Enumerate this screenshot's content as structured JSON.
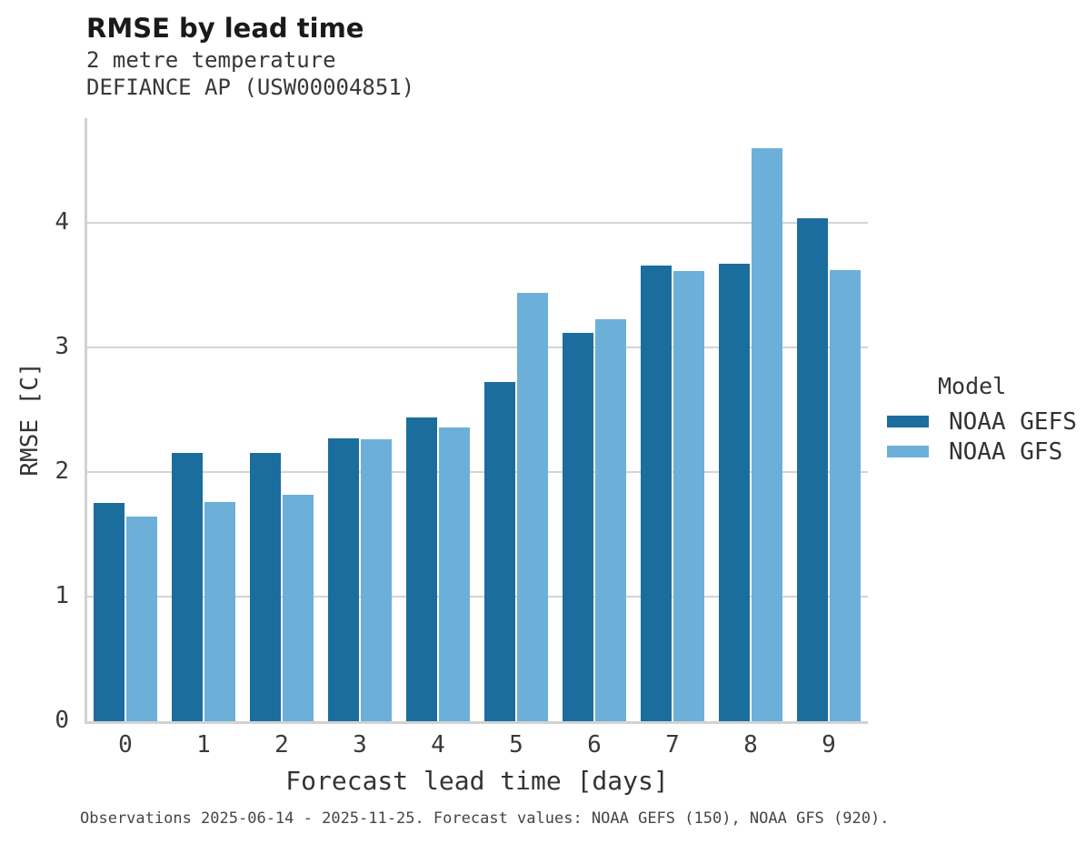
{
  "header": {
    "title": "RMSE by lead time",
    "subtitle_line1": "2 metre temperature",
    "subtitle_line2": "DEFIANCE AP (USW00004851)"
  },
  "legend": {
    "title": "Model",
    "entries": [
      {
        "label": "NOAA GEFS",
        "color": "#1b6d9e"
      },
      {
        "label": "NOAA GFS",
        "color": "#6cb0d9"
      }
    ]
  },
  "footer": {
    "caption": "Observations 2025-06-14 - 2025-11-25. Forecast values: NOAA GEFS (150), NOAA GFS (920)."
  },
  "chart_data": {
    "type": "bar",
    "title": "RMSE by lead time",
    "subtitle": [
      "2 metre temperature",
      "DEFIANCE AP (USW00004851)"
    ],
    "categories": [
      "0",
      "1",
      "2",
      "3",
      "4",
      "5",
      "6",
      "7",
      "8",
      "9"
    ],
    "series": [
      {
        "name": "NOAA GEFS",
        "color": "#1b6d9e",
        "values": [
          1.75,
          2.15,
          2.15,
          2.27,
          2.44,
          2.72,
          3.12,
          3.66,
          3.67,
          4.04
        ]
      },
      {
        "name": "NOAA GFS",
        "color": "#6cb0d9",
        "values": [
          1.64,
          1.76,
          1.82,
          2.26,
          2.36,
          3.44,
          3.23,
          3.61,
          4.6,
          3.62
        ]
      }
    ],
    "xlabel": "Forecast lead time [days]",
    "ylabel": "RMSE [C]",
    "ylim": [
      0,
      4.84
    ],
    "yticks": [
      0,
      1,
      2,
      3,
      4
    ],
    "grid": "horizontal-only",
    "legend_title": "Model",
    "legend_position": "right",
    "caption": "Observations 2025-06-14 - 2025-11-25. Forecast values: NOAA GEFS (150), NOAA GFS (920)."
  }
}
